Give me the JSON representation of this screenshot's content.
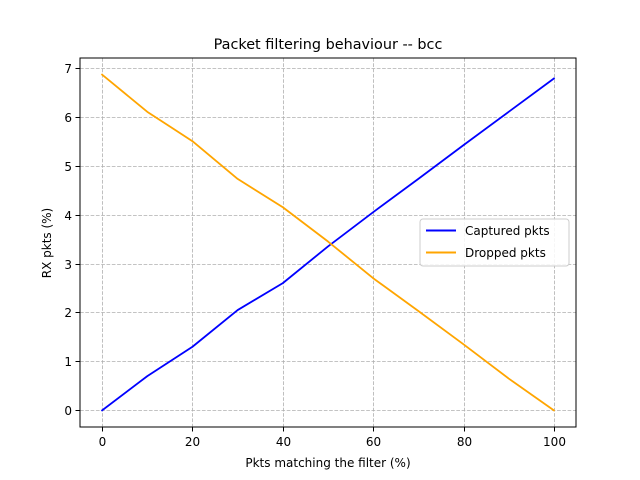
{
  "chart_data": {
    "type": "line",
    "title": "Packet filtering behaviour -- bcc",
    "xlabel": "Pkts matching the filter (%)",
    "ylabel": "RX pkts (%)",
    "xlim": [
      -4.9,
      104.9
    ],
    "ylim": [
      -0.34,
      7.2
    ],
    "xticks": [
      0,
      20,
      40,
      60,
      80,
      100
    ],
    "yticks": [
      0,
      1,
      2,
      3,
      4,
      5,
      6,
      7
    ],
    "grid": true,
    "grid_style": "dashed",
    "legend_position": "center-right",
    "x": [
      0,
      10,
      20,
      30,
      40,
      50,
      60,
      70,
      80,
      90,
      100
    ],
    "series": [
      {
        "name": "Captured pkts",
        "color": "#0000ff",
        "values": [
          0.0,
          0.7,
          1.3,
          2.05,
          2.6,
          3.35,
          4.05,
          4.73,
          5.42,
          6.1,
          6.78
        ]
      },
      {
        "name": "Dropped pkts",
        "color": "#ffa500",
        "values": [
          6.86,
          6.1,
          5.5,
          4.73,
          4.15,
          3.45,
          2.7,
          2.03,
          1.35,
          0.65,
          0.0
        ]
      }
    ]
  }
}
